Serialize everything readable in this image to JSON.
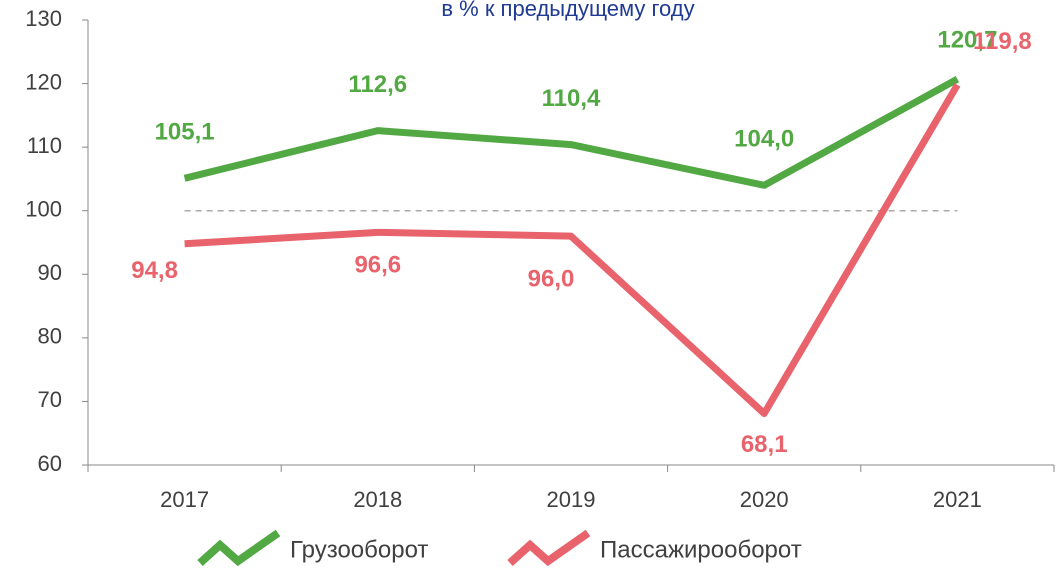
{
  "chart_data": {
    "type": "line",
    "subtitle": "в % к предыдущему году",
    "categories": [
      "2017",
      "2018",
      "2019",
      "2020",
      "2021"
    ],
    "series": [
      {
        "name": "Грузооборот",
        "color": "#52a944",
        "values": [
          105.1,
          112.6,
          110.4,
          104.0,
          120.7
        ],
        "value_labels": [
          "105,1",
          "112,6",
          "110,4",
          "104,0",
          "120,7"
        ]
      },
      {
        "name": "Пассажирооборот",
        "color": "#e8636b",
        "values": [
          94.8,
          96.6,
          96.0,
          68.1,
          119.8
        ],
        "value_labels": [
          "94,8",
          "96,6",
          "96,0",
          "68,1",
          "119,8"
        ]
      }
    ],
    "reference_line": 100,
    "ylim": [
      60,
      130
    ],
    "yticks": [
      60,
      70,
      80,
      90,
      100,
      110,
      120,
      130
    ]
  }
}
